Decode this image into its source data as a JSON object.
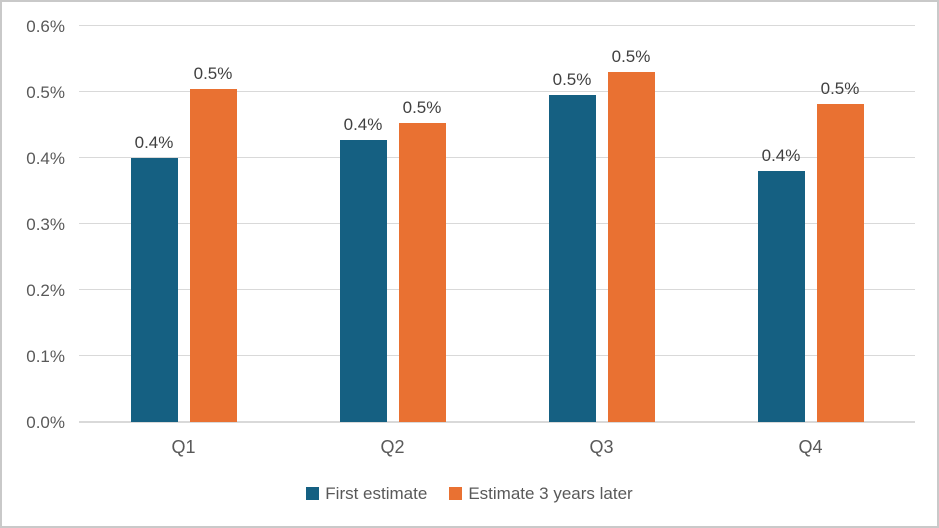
{
  "chart_data": {
    "type": "bar",
    "title": "",
    "categories": [
      "Q1",
      "Q2",
      "Q3",
      "Q4"
    ],
    "series": [
      {
        "name": "First estimate",
        "color": "#156082",
        "values": [
          0.4,
          0.428,
          0.495,
          0.38
        ],
        "data_labels": [
          "0.4%",
          "0.4%",
          "0.5%",
          "0.4%"
        ]
      },
      {
        "name": "Estimate 3 years later",
        "color": "#E97132",
        "values": [
          0.505,
          0.453,
          0.53,
          0.482
        ],
        "data_labels": [
          "0.5%",
          "0.5%",
          "0.5%",
          "0.5%"
        ]
      }
    ],
    "xlabel": "",
    "ylabel": "",
    "unit": "percent",
    "ylim": [
      0,
      0.6
    ],
    "ytick_step": 0.1,
    "ytick_labels": [
      "0.0%",
      "0.1%",
      "0.2%",
      "0.3%",
      "0.4%",
      "0.5%",
      "0.6%"
    ],
    "grid": true,
    "legend_position": "bottom"
  },
  "style": {
    "series1_color": "#156082",
    "series2_color": "#E97132",
    "gridline_color": "#D9D9D9",
    "axis_line_color": "#D9D9D9",
    "tick_label_color": "#595959",
    "data_label_color": "#404040",
    "legend_text_color": "#595959",
    "frame_border_color": "#C9C9C9",
    "background_color": "#FFFFFF"
  }
}
